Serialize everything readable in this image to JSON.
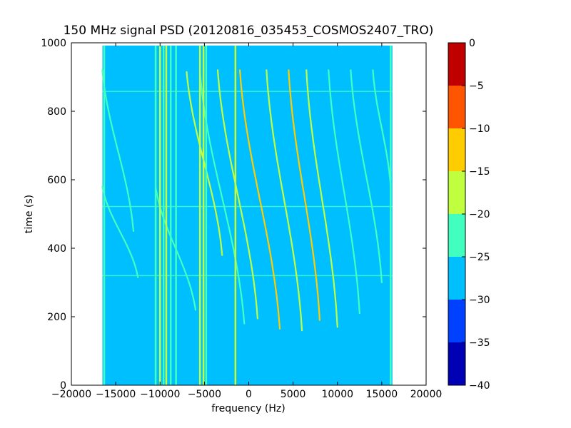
{
  "chart_data": {
    "type": "heatmap",
    "title": "150 MHz signal PSD (20120816_035453_COSMOS2407_TRO)",
    "xlabel": "frequency (Hz)",
    "ylabel": "time (s)",
    "xlim": [
      -20000,
      20000
    ],
    "ylim": [
      0,
      1000
    ],
    "x_ticks": [
      -20000,
      -15000,
      -10000,
      -5000,
      0,
      5000,
      10000,
      15000,
      20000
    ],
    "y_ticks": [
      0,
      200,
      400,
      600,
      800,
      1000
    ],
    "data_extent": {
      "x": [
        -16500,
        16200
      ],
      "y": [
        0,
        992
      ]
    },
    "background_level": -27.5,
    "grid": false,
    "colorbar": {
      "levels": [
        -40,
        -35,
        -30,
        -25,
        -20,
        -15,
        -10,
        -5,
        0
      ],
      "tick_labels": [
        "0",
        "−5",
        "−10",
        "−15",
        "−20",
        "−25",
        "−30",
        "−35",
        "−40"
      ],
      "colors": [
        "#0000b4",
        "#0040ff",
        "#00bfff",
        "#40ffbf",
        "#bfff40",
        "#ffcc00",
        "#ff5500",
        "#c00000"
      ]
    },
    "vertical_lines": [
      {
        "x": -16300,
        "level": -22.5
      },
      {
        "x": -10500,
        "level": -22.5
      },
      {
        "x": -10000,
        "level": -17.5
      },
      {
        "x": -9600,
        "level": -22.5
      },
      {
        "x": -9300,
        "level": -17.5
      },
      {
        "x": -8800,
        "level": -22.5
      },
      {
        "x": -8200,
        "level": -22.5
      },
      {
        "x": -5500,
        "level": -17.5
      },
      {
        "x": -5100,
        "level": -17.5
      },
      {
        "x": -4800,
        "level": -22.5
      },
      {
        "x": -1500,
        "level": -17.5
      },
      {
        "x": 16000,
        "level": -22.5
      }
    ],
    "horizontal_lines": [
      {
        "y": 858,
        "level": -22.5
      },
      {
        "y": 522,
        "level": -22.5
      },
      {
        "y": 320,
        "level": -22.5
      }
    ],
    "doppler_tracks": [
      {
        "x_top": -16500,
        "x_bottom": -13000,
        "t_top": 920,
        "t_bottom": 450,
        "level": -22.5
      },
      {
        "x_top": -16500,
        "x_bottom": -12500,
        "t_top": 580,
        "t_bottom": 315,
        "level": -22.5
      },
      {
        "x_top": -10500,
        "x_bottom": -6000,
        "t_top": 580,
        "t_bottom": 220,
        "level": -22.5
      },
      {
        "x_top": -7000,
        "x_bottom": -3000,
        "t_top": 915,
        "t_bottom": 380,
        "level": -17.5
      },
      {
        "x_top": -5500,
        "x_bottom": -500,
        "t_top": 915,
        "t_bottom": 180,
        "level": -22.5
      },
      {
        "x_top": -3500,
        "x_bottom": 1000,
        "t_top": 920,
        "t_bottom": 195,
        "level": -17.5
      },
      {
        "x_top": -1000,
        "x_bottom": 3500,
        "t_top": 920,
        "t_bottom": 165,
        "level": -12.5
      },
      {
        "x_top": 2000,
        "x_bottom": 6000,
        "t_top": 920,
        "t_bottom": 160,
        "level": -17.5
      },
      {
        "x_top": 4500,
        "x_bottom": 8000,
        "t_top": 920,
        "t_bottom": 190,
        "level": -12.5
      },
      {
        "x_top": 6500,
        "x_bottom": 10000,
        "t_top": 920,
        "t_bottom": 170,
        "level": -17.5
      },
      {
        "x_top": 9000,
        "x_bottom": 12500,
        "t_top": 920,
        "t_bottom": 210,
        "level": -22.5
      },
      {
        "x_top": 11500,
        "x_bottom": 15000,
        "t_top": 920,
        "t_bottom": 300,
        "level": -22.5
      },
      {
        "x_top": 14000,
        "x_bottom": 16000,
        "t_top": 920,
        "t_bottom": 580,
        "level": -22.5
      }
    ]
  }
}
